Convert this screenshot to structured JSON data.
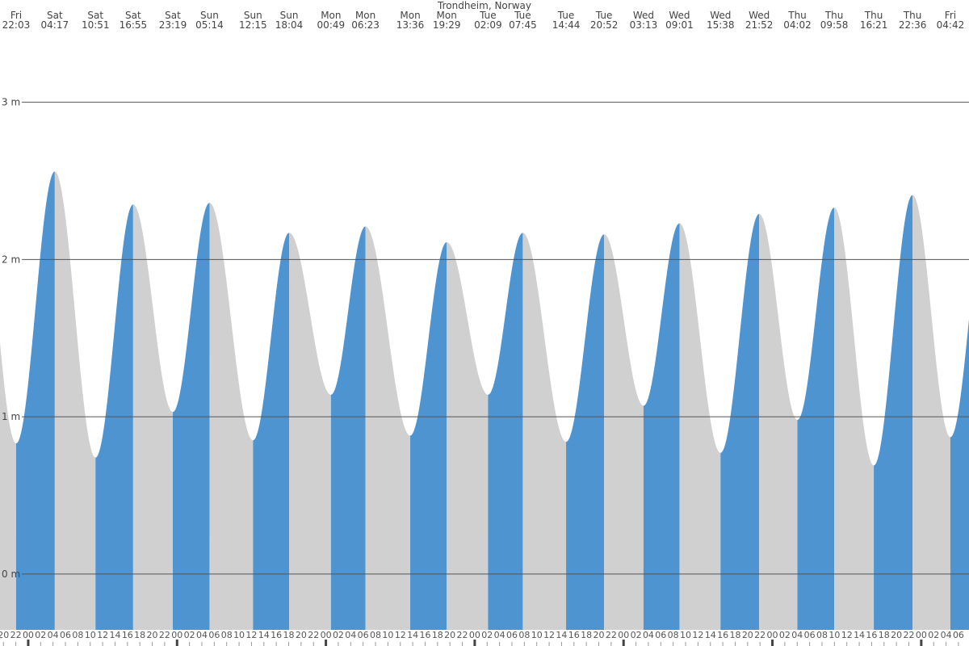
{
  "chart_data": {
    "type": "tide",
    "title": "Trondheim, Norway",
    "extremes": [
      {
        "day": "Fri",
        "time": "22:03",
        "height": 0.83
      },
      {
        "day": "Sat",
        "time": "04:17",
        "height": 2.56
      },
      {
        "day": "Sat",
        "time": "10:51",
        "height": 0.74
      },
      {
        "day": "Sat",
        "time": "16:55",
        "height": 2.35
      },
      {
        "day": "Sat",
        "time": "23:19",
        "height": 1.03
      },
      {
        "day": "Sun",
        "time": "05:14",
        "height": 2.36
      },
      {
        "day": "Sun",
        "time": "12:15",
        "height": 0.85
      },
      {
        "day": "Sun",
        "time": "18:04",
        "height": 2.17
      },
      {
        "day": "Mon",
        "time": "00:49",
        "height": 1.14
      },
      {
        "day": "Mon",
        "time": "06:23",
        "height": 2.21
      },
      {
        "day": "Mon",
        "time": "13:36",
        "height": 0.88
      },
      {
        "day": "Mon",
        "time": "19:29",
        "height": 2.11
      },
      {
        "day": "Tue",
        "time": "02:09",
        "height": 1.14
      },
      {
        "day": "Tue",
        "time": "07:45",
        "height": 2.17
      },
      {
        "day": "Tue",
        "time": "14:44",
        "height": 0.84
      },
      {
        "day": "Tue",
        "time": "20:52",
        "height": 2.16
      },
      {
        "day": "Wed",
        "time": "03:13",
        "height": 1.07
      },
      {
        "day": "Wed",
        "time": "09:01",
        "height": 2.23
      },
      {
        "day": "Wed",
        "time": "15:38",
        "height": 0.77
      },
      {
        "day": "Wed",
        "time": "21:52",
        "height": 2.29
      },
      {
        "day": "Thu",
        "time": "04:02",
        "height": 0.98
      },
      {
        "day": "Thu",
        "time": "09:58",
        "height": 2.33
      },
      {
        "day": "Thu",
        "time": "16:21",
        "height": 0.69
      },
      {
        "day": "Thu",
        "time": "22:36",
        "height": 2.41
      },
      {
        "day": "Fri",
        "time": "04:42",
        "height": 0.87
      }
    ],
    "ylim": [
      -0.355,
      3.65
    ],
    "yticks": [
      {
        "value": 0,
        "label": "0 m"
      },
      {
        "value": 1,
        "label": "1 m"
      },
      {
        "value": 2,
        "label": "2 m"
      },
      {
        "value": 3,
        "label": "3 m"
      }
    ],
    "xlim": [
      19.45,
      175.7
    ],
    "xticks": [
      20,
      22,
      {
        "value": 24,
        "label": "00"
      },
      {
        "value": 26,
        "label": "02"
      },
      {
        "value": 28,
        "label": "04"
      },
      {
        "value": 30,
        "label": "06"
      },
      {
        "value": 32,
        "label": "08"
      },
      {
        "value": 34,
        "label": "10"
      },
      {
        "value": 36,
        "label": "12"
      },
      {
        "value": 38,
        "label": "14"
      },
      {
        "value": 40,
        "label": "16"
      },
      {
        "value": 42,
        "label": "18"
      },
      {
        "value": 44,
        "label": "20"
      },
      {
        "value": 46,
        "label": "22"
      },
      {
        "value": 48,
        "label": "00"
      },
      {
        "value": 50,
        "label": "02"
      },
      {
        "value": 52,
        "label": "04"
      },
      {
        "value": 54,
        "label": "06"
      },
      {
        "value": 56,
        "label": "08"
      },
      {
        "value": 58,
        "label": "10"
      },
      {
        "value": 60,
        "label": "12"
      },
      {
        "value": 62,
        "label": "14"
      },
      {
        "value": 64,
        "label": "16"
      },
      {
        "value": 66,
        "label": "18"
      },
      {
        "value": 68,
        "label": "20"
      },
      {
        "value": 70,
        "label": "22"
      },
      {
        "value": 72,
        "label": "00"
      },
      {
        "value": 74,
        "label": "02"
      },
      {
        "value": 76,
        "label": "04"
      },
      {
        "value": 78,
        "label": "06"
      },
      {
        "value": 80,
        "label": "08"
      },
      {
        "value": 82,
        "label": "10"
      },
      {
        "value": 84,
        "label": "12"
      },
      {
        "value": 86,
        "label": "14"
      },
      {
        "value": 88,
        "label": "16"
      },
      {
        "value": 90,
        "label": "18"
      },
      {
        "value": 92,
        "label": "20"
      },
      {
        "value": 94,
        "label": "22"
      },
      {
        "value": 96,
        "label": "00"
      },
      {
        "value": 98,
        "label": "02"
      },
      {
        "value": 100,
        "label": "04"
      },
      {
        "value": 102,
        "label": "06"
      },
      {
        "value": 104,
        "label": "08"
      },
      {
        "value": 106,
        "label": "10"
      },
      {
        "value": 108,
        "label": "12"
      },
      {
        "value": 110,
        "label": "14"
      },
      {
        "value": 112,
        "label": "16"
      },
      {
        "value": 114,
        "label": "18"
      },
      {
        "value": 116,
        "label": "20"
      },
      {
        "value": 118,
        "label": "22"
      },
      {
        "value": 120,
        "label": "00"
      },
      {
        "value": 122,
        "label": "02"
      },
      {
        "value": 124,
        "label": "04"
      },
      {
        "value": 126,
        "label": "06"
      },
      {
        "value": 128,
        "label": "08"
      },
      {
        "value": 130,
        "label": "10"
      },
      {
        "value": 132,
        "label": "12"
      },
      {
        "value": 134,
        "label": "14"
      },
      {
        "value": 136,
        "label": "16"
      },
      {
        "value": 138,
        "label": "18"
      },
      {
        "value": 140,
        "label": "20"
      },
      {
        "value": 142,
        "label": "22"
      },
      {
        "value": 144,
        "label": "00"
      },
      {
        "value": 146,
        "label": "02"
      },
      {
        "value": 148,
        "label": "04"
      },
      {
        "value": 150,
        "label": "06"
      },
      {
        "value": 152,
        "label": "08"
      },
      {
        "value": 154,
        "label": "10"
      },
      {
        "value": 156,
        "label": "12"
      },
      {
        "value": 158,
        "label": "14"
      },
      {
        "value": 160,
        "label": "16"
      },
      {
        "value": 162,
        "label": "18"
      },
      {
        "value": 164,
        "label": "20"
      },
      {
        "value": 166,
        "label": "22"
      },
      {
        "value": 168,
        "label": "00"
      },
      {
        "value": 170,
        "label": "02"
      },
      {
        "value": 172,
        "label": "04"
      },
      {
        "value": 174,
        "label": "06"
      }
    ],
    "grid": true,
    "colors": {
      "rising": "#4d94d0",
      "falling": "#d0d0d0"
    }
  }
}
